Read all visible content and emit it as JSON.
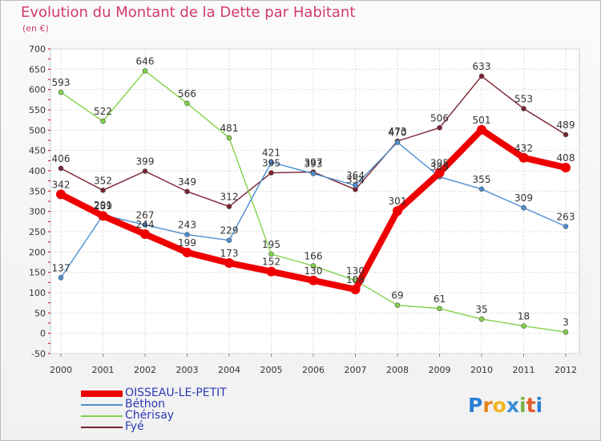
{
  "title": "Evolution du Montant de la Dette par Habitant",
  "subtitle": "(en €)",
  "logo": {
    "letters": [
      "P",
      "r",
      "o",
      "x",
      "i",
      "t",
      "i"
    ],
    "colors": [
      "#2a7fd4",
      "#e8821e",
      "#f0b51e",
      "#3a8fd8",
      "#7ab648",
      "#e05d2a",
      "#2a7fd4"
    ]
  },
  "chart_data": {
    "type": "line",
    "title": "Evolution du Montant de la Dette par Habitant",
    "subtitle": "(en €)",
    "x": [
      2000,
      2001,
      2002,
      2003,
      2004,
      2005,
      2006,
      2007,
      2008,
      2009,
      2010,
      2011,
      2012
    ],
    "ylim": [
      -50,
      700
    ],
    "yticks": [
      -50,
      0,
      50,
      100,
      150,
      200,
      250,
      300,
      350,
      400,
      450,
      500,
      550,
      600,
      650,
      700
    ],
    "grid": true,
    "legend_position": "bottom-left",
    "series": [
      {
        "name": "OISSEAU-LE-PETIT",
        "color": "#ee0000",
        "values": [
          342,
          289,
          244,
          199,
          173,
          152,
          130,
          108,
          301,
          395,
          501,
          432,
          408
        ]
      },
      {
        "name": "Béthon",
        "color": "#4b8fd1",
        "values": [
          137,
          291,
          267,
          243,
          229,
          421,
          393,
          364,
          470,
          385,
          355,
          309,
          263
        ]
      },
      {
        "name": "Chérisay",
        "color": "#82d24a",
        "values": [
          593,
          522,
          646,
          566,
          481,
          195,
          166,
          130,
          69,
          61,
          35,
          18,
          3
        ]
      },
      {
        "name": "Fyé",
        "color": "#7a2230",
        "values": [
          406,
          352,
          399,
          349,
          312,
          395,
          397,
          354,
          473,
          506,
          633,
          553,
          489
        ]
      }
    ]
  }
}
